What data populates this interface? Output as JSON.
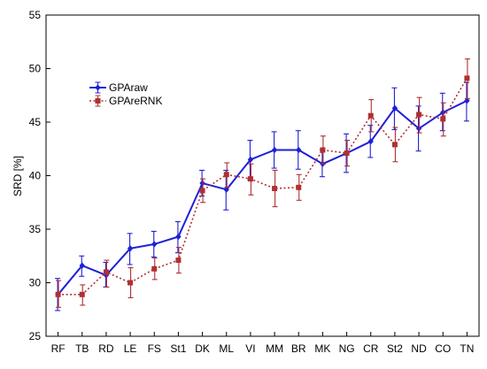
{
  "chart_data": {
    "type": "line",
    "title": "",
    "xlabel": "",
    "ylabel": "SRD [%]",
    "ylim": [
      25,
      55
    ],
    "yticks": [
      25,
      30,
      35,
      40,
      45,
      50,
      55
    ],
    "categories": [
      "RF",
      "TB",
      "RD",
      "LE",
      "FS",
      "St1",
      "DK",
      "ML",
      "VI",
      "MM",
      "BR",
      "MK",
      "NG",
      "CR",
      "St2",
      "ND",
      "CO",
      "TN"
    ],
    "legend_position": "upper-left",
    "grid": false,
    "series": [
      {
        "name": "GPAraw",
        "color": "#1f1fd6",
        "line_style": "solid",
        "marker": "diamond",
        "values": [
          28.9,
          31.6,
          30.7,
          33.2,
          33.6,
          34.3,
          39.3,
          38.7,
          41.5,
          42.4,
          42.4,
          41.1,
          42.1,
          43.2,
          46.3,
          44.4,
          45.9,
          47.0
        ],
        "err_lo": [
          27.4,
          30.6,
          29.6,
          31.7,
          32.4,
          32.8,
          38.1,
          36.8,
          39.6,
          40.7,
          40.6,
          39.9,
          40.3,
          41.7,
          44.3,
          42.3,
          44.2,
          45.1
        ],
        "err_hi": [
          30.4,
          32.5,
          31.9,
          34.6,
          34.8,
          35.7,
          40.5,
          40.5,
          43.3,
          44.1,
          44.2,
          42.4,
          43.9,
          44.7,
          48.2,
          46.5,
          47.7,
          48.7
        ]
      },
      {
        "name": "GPAreRNK",
        "color": "#b03030",
        "line_style": "dotted",
        "marker": "square",
        "values": [
          28.9,
          28.9,
          31.0,
          30.0,
          31.3,
          32.1,
          38.6,
          40.1,
          39.7,
          38.8,
          38.9,
          42.4,
          42.1,
          45.6,
          42.9,
          45.7,
          45.3,
          49.1
        ],
        "err_lo": [
          27.7,
          27.9,
          29.6,
          28.6,
          30.3,
          30.9,
          37.5,
          38.9,
          38.2,
          37.1,
          37.7,
          41.1,
          40.9,
          44.1,
          41.3,
          44.0,
          43.7,
          47.2
        ],
        "err_hi": [
          30.2,
          29.8,
          32.1,
          31.4,
          32.3,
          33.3,
          39.7,
          41.2,
          41.1,
          40.5,
          40.1,
          43.7,
          43.3,
          47.1,
          44.5,
          47.3,
          46.8,
          50.9
        ]
      }
    ]
  }
}
